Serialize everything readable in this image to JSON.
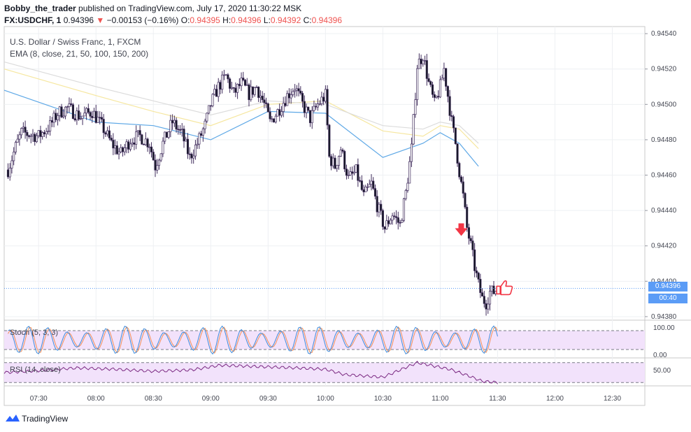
{
  "header": {
    "author": "Bobby_the_trader",
    "published_text": "published on TradingView.com, July 17, 2020 11:30:22 MSK",
    "symbol": "FX:USDCHF, 1",
    "last": "0.94396",
    "change": "−0.00153 (−0.16%)",
    "o_label": "O:",
    "o": "0.94395",
    "h_label": "H:",
    "h": "0.94396",
    "l_label": "L:",
    "l": "0.94392",
    "c_label": "C:",
    "c": "0.94396"
  },
  "legend": {
    "title": "U.S. Dollar / Swiss Franc, 1, FXCM",
    "ema": "EMA (8, close, 21, 50, 100, 150, 200)"
  },
  "indicators": {
    "stoch": "Stoch (5, 3, 3)",
    "stoch_levels": [
      "100.00",
      "0.00"
    ],
    "rsi": "RSI (14, close)",
    "rsi_level": "50.00"
  },
  "current_price": {
    "price": "0.94396",
    "countdown": "00:40"
  },
  "footer": {
    "brand": "TradingView"
  },
  "colors": {
    "up": "#ffffff",
    "down": "#131722",
    "wick": "#3f2b5b",
    "ema_blue": "#5ea8e6",
    "ema_yellow": "#f6e7a0",
    "ema_gray": "#dcdcdc",
    "stoch_k": "#3d8bdc",
    "stoch_d": "#f58f57",
    "rsi": "#7b2a82",
    "band_fill": "#f2e2fb",
    "marker": "#f23645",
    "price_line": "#5b9cf6"
  },
  "annotations": [
    {
      "type": "arrow-down",
      "time": "11:11",
      "price": 0.94428
    },
    {
      "type": "thumbs-up",
      "time": "11:31",
      "price": 0.94396
    }
  ],
  "chart_data": {
    "type": "candlestick",
    "symbol": "USDCHF",
    "timeframe": "1",
    "x_tick_labels": [
      "07:30",
      "08:00",
      "08:30",
      "09:00",
      "09:30",
      "10:00",
      "10:30",
      "11:00",
      "11:30",
      "12:00",
      "12:30"
    ],
    "y_tick_labels": [
      "0.94540",
      "0.94520",
      "0.94500",
      "0.94480",
      "0.94460",
      "0.94440",
      "0.94420",
      "0.94400",
      "0.94380"
    ],
    "ylim": [
      0.94378,
      0.94544
    ],
    "x_range": [
      "07:12",
      "12:47"
    ],
    "close_path": [
      [
        "07:14",
        0.94463
      ],
      [
        "07:18",
        0.94476
      ],
      [
        "07:21",
        0.94484
      ],
      [
        "07:30",
        0.94482
      ],
      [
        "07:36",
        0.94488
      ],
      [
        "07:40",
        0.94495
      ],
      [
        "07:45",
        0.94498
      ],
      [
        "07:52",
        0.94493
      ],
      [
        "07:58",
        0.94496
      ],
      [
        "08:03",
        0.94488
      ],
      [
        "08:08",
        0.94478
      ],
      [
        "08:13",
        0.94472
      ],
      [
        "08:18",
        0.9448
      ],
      [
        "08:23",
        0.94482
      ],
      [
        "08:28",
        0.94478
      ],
      [
        "08:31",
        0.94465
      ],
      [
        "08:35",
        0.94478
      ],
      [
        "08:40",
        0.9449
      ],
      [
        "08:45",
        0.94483
      ],
      [
        "08:49",
        0.9447
      ],
      [
        "08:53",
        0.94478
      ],
      [
        "08:57",
        0.94488
      ],
      [
        "09:00",
        0.945
      ],
      [
        "09:04",
        0.9451
      ],
      [
        "09:08",
        0.94516
      ],
      [
        "09:12",
        0.94506
      ],
      [
        "09:16",
        0.94512
      ],
      [
        "09:20",
        0.94506
      ],
      [
        "09:24",
        0.9451
      ],
      [
        "09:28",
        0.945
      ],
      [
        "09:31",
        0.9449
      ],
      [
        "09:35",
        0.94496
      ],
      [
        "09:40",
        0.94505
      ],
      [
        "09:44",
        0.9451
      ],
      [
        "09:48",
        0.945
      ],
      [
        "09:52",
        0.94492
      ],
      [
        "09:56",
        0.945
      ],
      [
        "10:00",
        0.94505
      ],
      [
        "10:02",
        0.9447
      ],
      [
        "10:05",
        0.94465
      ],
      [
        "10:08",
        0.94475
      ],
      [
        "10:12",
        0.94458
      ],
      [
        "10:16",
        0.94462
      ],
      [
        "10:20",
        0.94448
      ],
      [
        "10:24",
        0.94455
      ],
      [
        "10:27",
        0.94443
      ],
      [
        "10:31",
        0.9443
      ],
      [
        "10:35",
        0.94438
      ],
      [
        "10:39",
        0.94432
      ],
      [
        "10:42",
        0.9445
      ],
      [
        "10:45",
        0.94475
      ],
      [
        "10:48",
        0.94522
      ],
      [
        "10:51",
        0.94528
      ],
      [
        "10:54",
        0.94512
      ],
      [
        "10:57",
        0.945
      ],
      [
        "11:00",
        0.9451
      ],
      [
        "11:02",
        0.9452
      ],
      [
        "11:04",
        0.94505
      ],
      [
        "11:06",
        0.9449
      ],
      [
        "11:08",
        0.94478
      ],
      [
        "11:10",
        0.94462
      ],
      [
        "11:12",
        0.94448
      ],
      [
        "11:14",
        0.9443
      ],
      [
        "11:16",
        0.9442
      ],
      [
        "11:18",
        0.94408
      ],
      [
        "11:20",
        0.94398
      ],
      [
        "11:22",
        0.9439
      ],
      [
        "11:24",
        0.94388
      ],
      [
        "11:26",
        0.94394
      ],
      [
        "11:28",
        0.94394
      ],
      [
        "11:30",
        0.94396
      ]
    ],
    "ema_series": [
      {
        "color": "ema_blue",
        "values": [
          [
            "07:12",
            0.94508
          ],
          [
            "08:00",
            0.9449
          ],
          [
            "08:30",
            0.94488
          ],
          [
            "09:00",
            0.9448
          ],
          [
            "09:30",
            0.94496
          ],
          [
            "10:00",
            0.94495
          ],
          [
            "10:30",
            0.9447
          ],
          [
            "10:51",
            0.94478
          ],
          [
            "11:00",
            0.94484
          ],
          [
            "11:10",
            0.94478
          ],
          [
            "11:20",
            0.94465
          ]
        ]
      },
      {
        "color": "ema_yellow",
        "values": [
          [
            "07:12",
            0.9452
          ],
          [
            "08:00",
            0.94505
          ],
          [
            "08:30",
            0.94496
          ],
          [
            "09:00",
            0.94488
          ],
          [
            "09:30",
            0.945
          ],
          [
            "10:00",
            0.94502
          ],
          [
            "10:30",
            0.94485
          ],
          [
            "10:51",
            0.94482
          ],
          [
            "11:00",
            0.94488
          ],
          [
            "11:10",
            0.94486
          ],
          [
            "11:20",
            0.94475
          ]
        ]
      },
      {
        "color": "ema_gray",
        "values": [
          [
            "07:12",
            0.94524
          ],
          [
            "08:00",
            0.9451
          ],
          [
            "08:30",
            0.94502
          ],
          [
            "09:00",
            0.94494
          ],
          [
            "09:30",
            0.94502
          ],
          [
            "10:00",
            0.945
          ],
          [
            "10:30",
            0.94488
          ],
          [
            "10:51",
            0.94486
          ],
          [
            "11:00",
            0.9449
          ],
          [
            "11:10",
            0.94488
          ],
          [
            "11:20",
            0.94478
          ]
        ]
      }
    ],
    "stoch_ylim": [
      0,
      100
    ],
    "rsi_ylim": [
      25,
      65
    ],
    "rsi_path": [
      [
        "07:12",
        45
      ],
      [
        "07:30",
        48
      ],
      [
        "07:50",
        52
      ],
      [
        "08:10",
        50
      ],
      [
        "08:30",
        47
      ],
      [
        "08:50",
        49
      ],
      [
        "09:05",
        56
      ],
      [
        "09:25",
        54
      ],
      [
        "09:45",
        52
      ],
      [
        "10:00",
        50
      ],
      [
        "10:10",
        42
      ],
      [
        "10:30",
        38
      ],
      [
        "10:48",
        60
      ],
      [
        "10:55",
        56
      ],
      [
        "11:05",
        50
      ],
      [
        "11:15",
        40
      ],
      [
        "11:22",
        32
      ],
      [
        "11:30",
        30
      ]
    ]
  }
}
